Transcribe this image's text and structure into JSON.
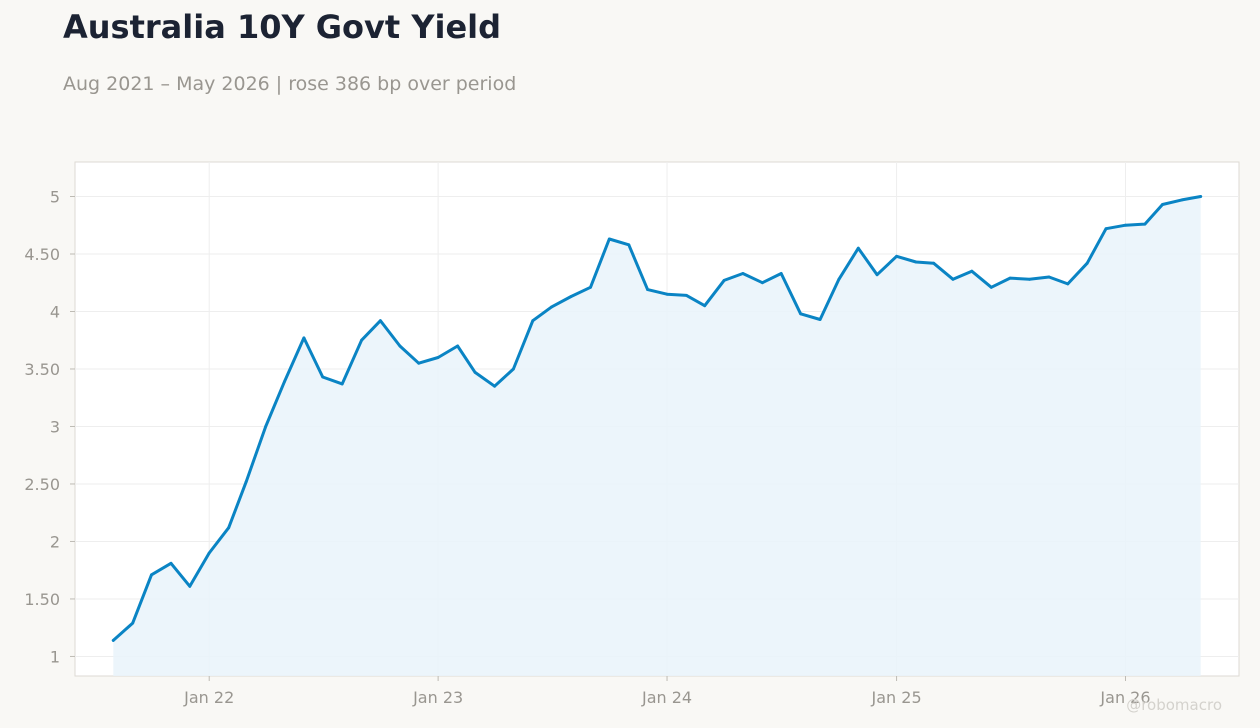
{
  "title": "Australia 10Y Govt Yield",
  "subtitle": "Aug 2021 – May 2026 | rose 386 bp over period",
  "watermark": "@robomacro",
  "colors": {
    "line": "#0a84c4",
    "area": "#e9f3fa",
    "grid": "#eeeeee",
    "tick_text": "#999690",
    "background": "#f9f8f5",
    "plot_background": "#ffffff"
  },
  "chart_data": {
    "type": "area",
    "title": "Australia 10Y Govt Yield",
    "subtitle": "Aug 2021 – May 2026 | rose 386 bp over period",
    "xlabel": "",
    "ylabel": "",
    "ylim": [
      0.83,
      5.3
    ],
    "xlim": [
      "2021-06-01",
      "2026-07-01"
    ],
    "grid": true,
    "legend": "none",
    "y_ticks": [
      1,
      1.5,
      2,
      2.5,
      3,
      3.5,
      4,
      4.5,
      5
    ],
    "y_tick_labels": [
      "1",
      "1.50",
      "2",
      "2.50",
      "3",
      "3.50",
      "4",
      "4.50",
      "5"
    ],
    "x_ticks": [
      "2022-01-01",
      "2023-01-01",
      "2024-01-01",
      "2025-01-01",
      "2026-01-01"
    ],
    "x_tick_labels": [
      "Jan 22",
      "Jan 23",
      "Jan 24",
      "Jan 25",
      "Jan 26"
    ],
    "series": [
      {
        "x": [
          "2021-08-01",
          "2021-09-01",
          "2021-10-01",
          "2021-11-01",
          "2021-12-01",
          "2022-01-01",
          "2022-02-01",
          "2022-03-01",
          "2022-04-01",
          "2022-05-01",
          "2022-06-01",
          "2022-07-01",
          "2022-08-01",
          "2022-09-01",
          "2022-10-01",
          "2022-11-01",
          "2022-12-01",
          "2023-01-01",
          "2023-02-01",
          "2023-03-01",
          "2023-04-01",
          "2023-05-01",
          "2023-06-01",
          "2023-07-01",
          "2023-08-01",
          "2023-09-01",
          "2023-10-01",
          "2023-11-01",
          "2023-12-01",
          "2024-01-01",
          "2024-02-01",
          "2024-03-01",
          "2024-04-01",
          "2024-05-01",
          "2024-06-01",
          "2024-07-01",
          "2024-08-01",
          "2024-09-01",
          "2024-10-01",
          "2024-11-01",
          "2024-12-01",
          "2025-01-01",
          "2025-02-01",
          "2025-03-01",
          "2025-04-01",
          "2025-05-01",
          "2025-06-01",
          "2025-07-01",
          "2025-08-01",
          "2025-09-01",
          "2025-10-01",
          "2025-11-01",
          "2025-12-01",
          "2026-01-01",
          "2026-02-01",
          "2026-03-01",
          "2026-04-01",
          "2026-05-01"
        ],
        "values": [
          1.14,
          1.29,
          1.71,
          1.81,
          1.61,
          1.9,
          2.12,
          2.52,
          3.0,
          3.39,
          3.77,
          3.43,
          3.37,
          3.75,
          3.92,
          3.7,
          3.55,
          3.6,
          3.7,
          3.47,
          3.35,
          3.5,
          3.92,
          4.04,
          4.13,
          4.21,
          4.63,
          4.58,
          4.19,
          4.15,
          4.14,
          4.05,
          4.27,
          4.33,
          4.25,
          4.33,
          3.98,
          3.93,
          4.28,
          4.55,
          4.32,
          4.48,
          4.43,
          4.42,
          4.28,
          4.35,
          4.21,
          4.29,
          4.28,
          4.3,
          4.24,
          4.42,
          4.72,
          4.75,
          4.76,
          4.93,
          4.97,
          5.0
        ]
      }
    ]
  }
}
